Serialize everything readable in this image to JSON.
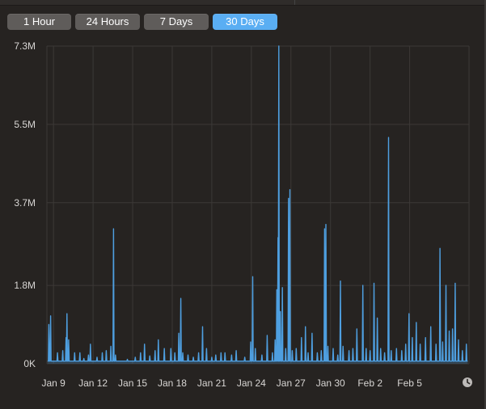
{
  "tabs": [
    {
      "label": "1 Hour",
      "active": false
    },
    {
      "label": "24 Hours",
      "active": false
    },
    {
      "label": "7 Days",
      "active": false
    },
    {
      "label": "30 Days",
      "active": true
    }
  ],
  "colors": {
    "accent": "#5aaef3",
    "line": "#4e9fe0",
    "background": "#262321",
    "grid": "#3c3937"
  },
  "icons": {
    "clock": "clock-icon"
  },
  "chart_data": {
    "type": "line",
    "ylim": [
      0,
      7.3
    ],
    "y_unit": "M",
    "yticks": [
      {
        "label": "7.3M",
        "value": 7.3
      },
      {
        "label": "5.5M",
        "value": 5.5
      },
      {
        "label": "3.7M",
        "value": 3.7
      },
      {
        "label": "1.8M",
        "value": 1.8
      },
      {
        "label": "0K",
        "value": 0
      }
    ],
    "xlim": [
      8.5,
      40.5
    ],
    "xticks": [
      {
        "label": "Jan 9",
        "day": 9
      },
      {
        "label": "Jan 12",
        "day": 12
      },
      {
        "label": "Jan 15",
        "day": 15
      },
      {
        "label": "Jan 18",
        "day": 18
      },
      {
        "label": "Jan 21",
        "day": 21
      },
      {
        "label": "Jan 24",
        "day": 24
      },
      {
        "label": "Jan 27",
        "day": 27
      },
      {
        "label": "Jan 30",
        "day": 30
      },
      {
        "label": "Feb 2",
        "day": 33
      },
      {
        "label": "Feb 5",
        "day": 36
      }
    ],
    "grid": true,
    "series": [
      {
        "baseline": 0.06,
        "points": [
          [
            8.65,
            0.9
          ],
          [
            8.78,
            1.1
          ],
          [
            9.3,
            0.25
          ],
          [
            9.7,
            0.3
          ],
          [
            9.95,
            0.6
          ],
          [
            10.02,
            1.15
          ],
          [
            10.15,
            0.55
          ],
          [
            10.6,
            0.25
          ],
          [
            11.0,
            0.25
          ],
          [
            11.3,
            0.12
          ],
          [
            11.65,
            0.2
          ],
          [
            11.8,
            0.45
          ],
          [
            12.3,
            0.15
          ],
          [
            12.7,
            0.25
          ],
          [
            13.0,
            0.3
          ],
          [
            13.35,
            0.4
          ],
          [
            13.55,
            3.1
          ],
          [
            13.7,
            0.2
          ],
          [
            14.6,
            0.1
          ],
          [
            15.2,
            0.15
          ],
          [
            15.6,
            0.25
          ],
          [
            15.9,
            0.45
          ],
          [
            16.3,
            0.18
          ],
          [
            16.7,
            0.3
          ],
          [
            16.95,
            0.55
          ],
          [
            17.4,
            0.35
          ],
          [
            17.9,
            0.35
          ],
          [
            18.2,
            0.25
          ],
          [
            18.5,
            0.7
          ],
          [
            18.65,
            1.5
          ],
          [
            18.8,
            0.25
          ],
          [
            19.2,
            0.2
          ],
          [
            19.6,
            0.15
          ],
          [
            20.0,
            0.25
          ],
          [
            20.3,
            0.85
          ],
          [
            20.6,
            0.35
          ],
          [
            21.0,
            0.15
          ],
          [
            21.3,
            0.2
          ],
          [
            21.7,
            0.25
          ],
          [
            22.0,
            0.25
          ],
          [
            22.5,
            0.2
          ],
          [
            22.85,
            0.3
          ],
          [
            23.5,
            0.15
          ],
          [
            23.95,
            0.5
          ],
          [
            24.1,
            2.0
          ],
          [
            24.3,
            0.35
          ],
          [
            24.8,
            0.2
          ],
          [
            25.2,
            0.65
          ],
          [
            25.6,
            0.25
          ],
          [
            25.8,
            0.55
          ],
          [
            25.93,
            1.7
          ],
          [
            26.02,
            2.9
          ],
          [
            26.08,
            7.3
          ],
          [
            26.2,
            1.2
          ],
          [
            26.35,
            1.75
          ],
          [
            26.6,
            0.35
          ],
          [
            26.82,
            3.8
          ],
          [
            26.92,
            4.0
          ],
          [
            27.1,
            0.3
          ],
          [
            27.4,
            0.35
          ],
          [
            27.8,
            0.6
          ],
          [
            28.1,
            0.85
          ],
          [
            28.3,
            0.25
          ],
          [
            28.6,
            0.7
          ],
          [
            29.0,
            0.25
          ],
          [
            29.3,
            0.3
          ],
          [
            29.55,
            3.1
          ],
          [
            29.65,
            3.2
          ],
          [
            29.8,
            0.4
          ],
          [
            30.2,
            0.35
          ],
          [
            30.55,
            0.2
          ],
          [
            30.75,
            1.9
          ],
          [
            30.95,
            0.4
          ],
          [
            31.4,
            0.3
          ],
          [
            31.7,
            0.35
          ],
          [
            32.0,
            0.8
          ],
          [
            32.45,
            1.8
          ],
          [
            32.7,
            0.35
          ],
          [
            33.0,
            0.3
          ],
          [
            33.3,
            1.85
          ],
          [
            33.55,
            1.05
          ],
          [
            33.8,
            0.35
          ],
          [
            34.1,
            0.25
          ],
          [
            34.4,
            5.2
          ],
          [
            34.6,
            0.3
          ],
          [
            35.0,
            0.35
          ],
          [
            35.4,
            0.3
          ],
          [
            35.7,
            0.45
          ],
          [
            35.95,
            1.15
          ],
          [
            36.2,
            0.6
          ],
          [
            36.5,
            0.95
          ],
          [
            36.8,
            0.45
          ],
          [
            37.2,
            0.6
          ],
          [
            37.6,
            0.85
          ],
          [
            38.0,
            0.45
          ],
          [
            38.3,
            2.65
          ],
          [
            38.5,
            0.5
          ],
          [
            38.75,
            1.8
          ],
          [
            39.0,
            0.75
          ],
          [
            39.25,
            0.8
          ],
          [
            39.45,
            1.85
          ],
          [
            39.7,
            0.55
          ],
          [
            40.0,
            0.3
          ],
          [
            40.3,
            0.45
          ]
        ]
      }
    ]
  }
}
